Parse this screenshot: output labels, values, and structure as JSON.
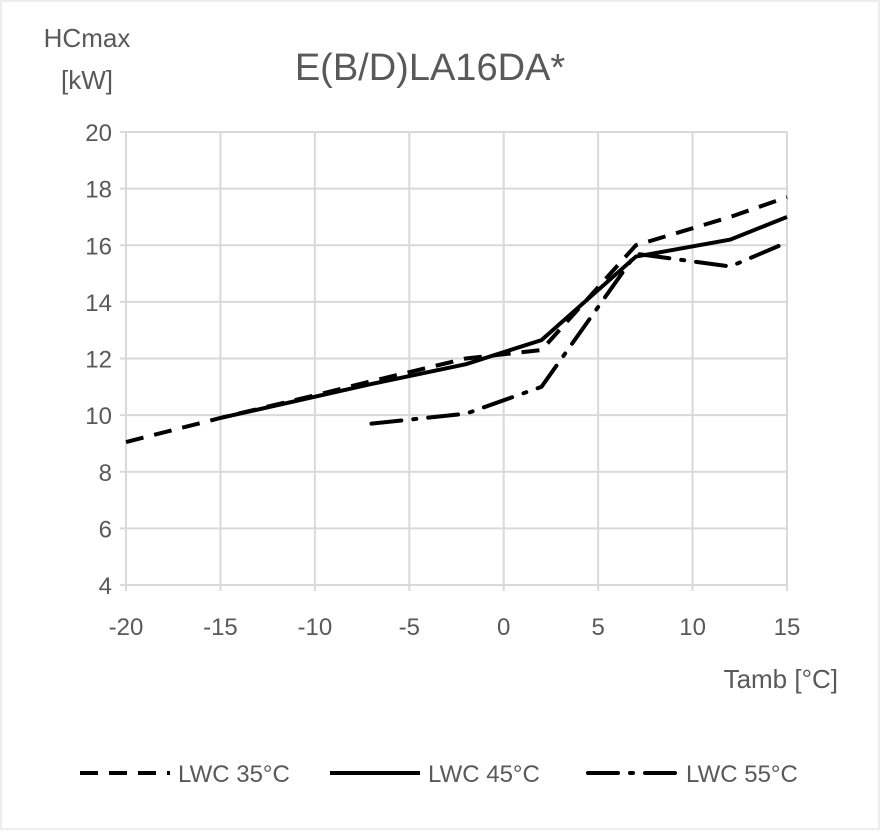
{
  "chart_data": {
    "type": "line",
    "title": "E(B/D)LA16DA*",
    "ylabel_line1": "HCmax",
    "ylabel_line2": "[kW]",
    "xlabel": "Tamb [°C]",
    "xlim": [
      -20,
      15
    ],
    "ylim": [
      4,
      20
    ],
    "xticks": [
      -20,
      -15,
      -10,
      -5,
      0,
      5,
      10,
      15
    ],
    "yticks": [
      4,
      6,
      8,
      10,
      12,
      14,
      16,
      18,
      20
    ],
    "grid": true,
    "legend_position": "bottom",
    "series": [
      {
        "name": "LWC 35°C",
        "style": "dashed",
        "x": [
          -20,
          -15,
          -10,
          -7,
          -2,
          2,
          7,
          12,
          15
        ],
        "y": [
          9.05,
          9.9,
          10.7,
          11.2,
          12.0,
          12.3,
          16.0,
          17.0,
          17.7
        ]
      },
      {
        "name": "LWC 45°C",
        "style": "solid",
        "x": [
          -15,
          -7,
          -2,
          2,
          7,
          12,
          15
        ],
        "y": [
          9.9,
          11.1,
          11.8,
          12.65,
          15.6,
          16.2,
          17.0
        ]
      },
      {
        "name": "LWC 55°C",
        "style": "dashdot",
        "x": [
          -7,
          -2,
          2,
          7,
          12,
          15
        ],
        "y": [
          9.7,
          10.05,
          11.0,
          15.7,
          15.25,
          16.1
        ]
      }
    ]
  }
}
